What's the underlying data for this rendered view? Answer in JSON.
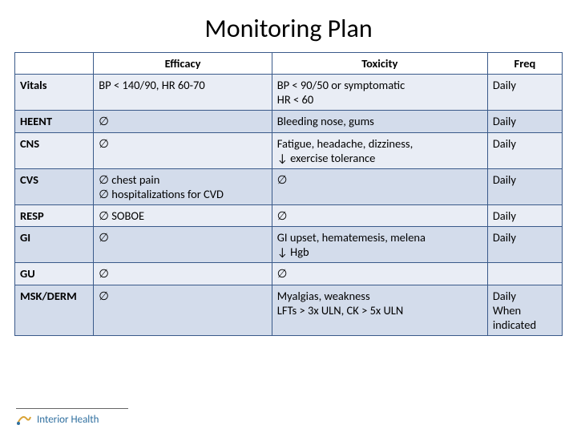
{
  "title": "Monitoring Plan",
  "columns": [
    "",
    "Efficacy",
    "Toxicity",
    "Freq"
  ],
  "col_align": [
    "left",
    "center",
    "center",
    "center"
  ],
  "rows": [
    {
      "label": "Vitals",
      "efficacy": "BP < 140/90, HR 60-70",
      "toxicity": "BP < 90/50 or symptomatic\nHR < 60",
      "freq": "Daily"
    },
    {
      "label": "HEENT",
      "efficacy": "∅",
      "toxicity": "Bleeding nose, gums",
      "freq": "Daily"
    },
    {
      "label": "CNS",
      "efficacy": "∅",
      "toxicity": "Fatigue, headache, dizziness,\n↓ exercise tolerance",
      "freq": "Daily"
    },
    {
      "label": "CVS",
      "efficacy": "∅ chest pain\n∅ hospitalizations for CVD",
      "toxicity": "∅",
      "freq": "Daily"
    },
    {
      "label": "RESP",
      "efficacy": "∅ SOBOE",
      "toxicity": "∅",
      "freq": "Daily"
    },
    {
      "label": "GI",
      "efficacy": "∅",
      "toxicity": "GI upset, hematemesis, melena\n↓ Hgb",
      "freq": "Daily"
    },
    {
      "label": "GU",
      "efficacy": "∅",
      "toxicity": "∅",
      "freq": ""
    },
    {
      "label": "MSK/DERM",
      "efficacy": "∅",
      "toxicity": "Myalgias, weakness\nLFTs > 3x ULN, CK > 5x ULN",
      "freq": "Daily\nWhen indicated"
    }
  ],
  "footer_brand": "Interior Health",
  "colors": {
    "border": "#3a5a8a",
    "row_odd": "#e9edf5",
    "row_even": "#d3dceb",
    "brand_text": "#2f6f9f",
    "brand_accent": "#d9a336"
  },
  "typography": {
    "title_fontsize": 32,
    "cell_fontsize": 14.5,
    "font_family": "Calibri"
  }
}
